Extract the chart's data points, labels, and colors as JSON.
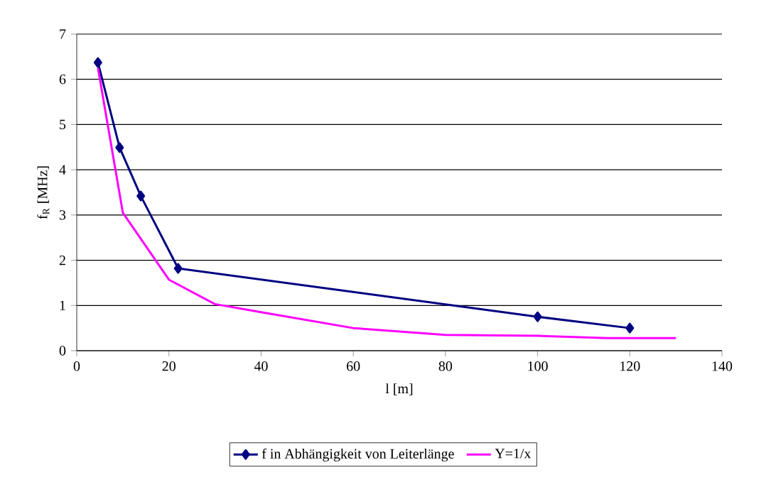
{
  "chart_data": {
    "type": "line",
    "xlabel": "l [m]",
    "ylabel": "f$_{R}$ [MHz]",
    "xlim": [
      0,
      140
    ],
    "xticks": [
      0,
      20,
      40,
      60,
      80,
      100,
      120,
      140
    ],
    "ylim": [
      0,
      7
    ],
    "yticks": [
      0,
      1,
      2,
      3,
      4,
      5,
      6,
      7
    ],
    "grid": "y",
    "legend": "bottom",
    "series": [
      {
        "name": "f in Abhängigkeit von Leiterlänge",
        "color": "#000080",
        "marker": "diamond",
        "x": [
          4.6,
          9.3,
          13.9,
          22,
          100,
          120
        ],
        "values": [
          6.37,
          4.49,
          3.42,
          1.82,
          0.75,
          0.5
        ]
      },
      {
        "name": "Y=1/x",
        "color": "#ff00ff",
        "marker": "none",
        "x": [
          4.6,
          10,
          20,
          30,
          40,
          60,
          80,
          100,
          115,
          130
        ],
        "values": [
          6.25,
          3.05,
          1.57,
          1.03,
          0.85,
          0.5,
          0.35,
          0.33,
          0.28,
          0.28
        ]
      }
    ]
  }
}
